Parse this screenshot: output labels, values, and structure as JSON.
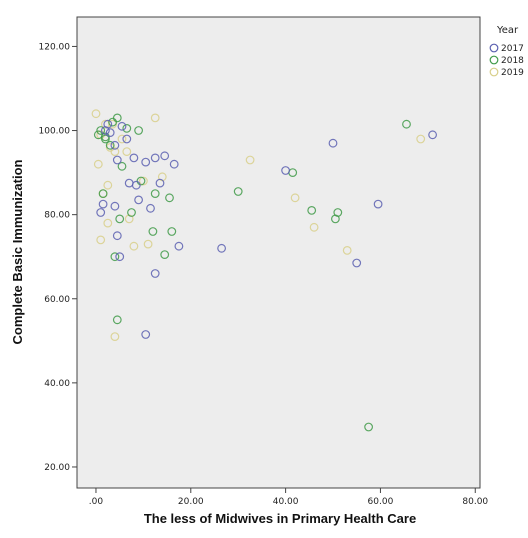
{
  "chart_data": {
    "type": "scatter",
    "title": "",
    "xlabel": "The less of Midwives in Primary Health Care",
    "ylabel": "Complete Basic Immunization",
    "xlim": [
      -4,
      81
    ],
    "ylim": [
      15,
      127
    ],
    "x_ticks": [
      {
        "value": 0,
        "label": ".00"
      },
      {
        "value": 20,
        "label": "20.00"
      },
      {
        "value": 40,
        "label": "40.00"
      },
      {
        "value": 60,
        "label": "60.00"
      },
      {
        "value": 80,
        "label": "80.00"
      }
    ],
    "y_ticks": [
      {
        "value": 20,
        "label": "20.00"
      },
      {
        "value": 40,
        "label": "40.00"
      },
      {
        "value": 60,
        "label": "60.00"
      },
      {
        "value": 80,
        "label": "80.00"
      },
      {
        "value": 100,
        "label": "100.00"
      },
      {
        "value": 120,
        "label": "120.00"
      }
    ],
    "grid": false,
    "background": "#ededed",
    "legend": {
      "title": "Year",
      "placement": "right-top"
    },
    "series": [
      {
        "name": "2017",
        "color": "#5a5fb0",
        "x": [
          1.0,
          1.5,
          2.5,
          3.0,
          4.0,
          4.5,
          5.0,
          5.5,
          6.5,
          7.0,
          8.0,
          8.5,
          9.0,
          10.5,
          11.5,
          12.5,
          13.5,
          14.5,
          16.5,
          17.5,
          4.0,
          12.5,
          10.5,
          26.5,
          40.0,
          50.0,
          55.0,
          59.5,
          71.0,
          2.0,
          4.5
        ],
        "y": [
          80.5,
          82.5,
          101.5,
          99.5,
          96.5,
          75.0,
          70.0,
          101.0,
          98.0,
          87.5,
          93.5,
          87.0,
          83.5,
          92.5,
          81.5,
          93.5,
          87.5,
          94.0,
          92.0,
          72.5,
          82.0,
          66.0,
          51.5,
          72.0,
          90.5,
          97.0,
          68.5,
          82.5,
          99.0,
          100.0,
          93.0
        ]
      },
      {
        "name": "2018",
        "color": "#3f9a48",
        "x": [
          0.5,
          1.0,
          1.5,
          2.0,
          3.0,
          3.5,
          4.0,
          4.5,
          5.0,
          5.5,
          6.5,
          7.5,
          9.0,
          12.0,
          12.5,
          14.5,
          15.5,
          16.0,
          4.5,
          30.0,
          41.5,
          45.5,
          50.5,
          51.0,
          57.5,
          65.5,
          2.0,
          9.5
        ],
        "y": [
          99.0,
          100.0,
          85.0,
          98.5,
          96.5,
          102.0,
          70.0,
          103.0,
          79.0,
          91.5,
          100.5,
          80.5,
          100.0,
          76.0,
          85.0,
          70.5,
          84.0,
          76.0,
          55.0,
          85.5,
          90.0,
          81.0,
          79.0,
          80.5,
          29.5,
          101.5,
          98.0,
          88.0
        ]
      },
      {
        "name": "2019",
        "color": "#d8cf8a",
        "x": [
          0.0,
          0.5,
          1.0,
          1.5,
          2.0,
          2.5,
          3.0,
          3.5,
          4.0,
          5.5,
          6.5,
          7.0,
          8.0,
          10.0,
          11.0,
          12.5,
          14.0,
          4.0,
          32.5,
          42.0,
          46.0,
          53.0,
          68.5,
          1.0,
          2.5
        ],
        "y": [
          104.0,
          92.0,
          74.0,
          85.0,
          101.5,
          87.0,
          96.0,
          101.5,
          51.0,
          98.0,
          95.0,
          79.0,
          72.5,
          88.0,
          73.0,
          103.0,
          89.0,
          95.0,
          93.0,
          84.0,
          77.0,
          71.5,
          98.0,
          99.0,
          78.0
        ]
      }
    ]
  }
}
